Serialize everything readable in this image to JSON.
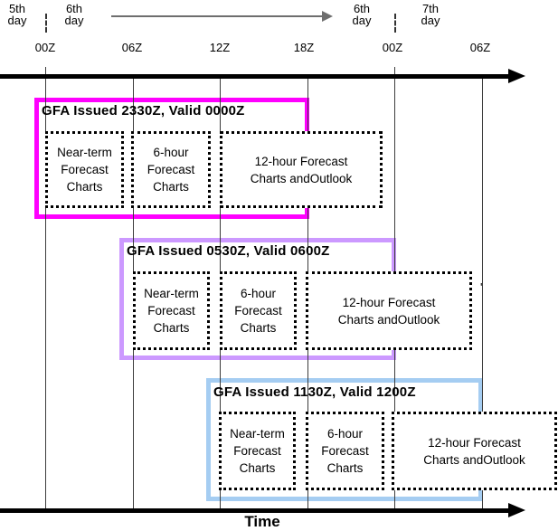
{
  "diagram": {
    "day_headers": [
      {
        "lines": [
          "5th",
          "day"
        ]
      },
      {
        "lines": [
          "6th",
          "day"
        ]
      },
      {
        "lines": [
          "6th",
          "day"
        ]
      },
      {
        "lines": [
          "7th",
          "day"
        ]
      }
    ],
    "axis_ticks": [
      "00Z",
      "06Z",
      "12Z",
      "18Z",
      "00Z",
      "06Z"
    ],
    "time_axis_label": "Time",
    "stray_mark": "'"
  },
  "groups": [
    {
      "title": "GFA Issued 2330Z, Valid 0000Z",
      "border_color": "#FF00FF",
      "boxes": [
        {
          "lines": [
            "Near-term",
            "Forecast",
            "Charts"
          ]
        },
        {
          "lines": [
            "6-hour",
            "Forecast",
            "Charts"
          ]
        },
        {
          "lines": [
            "12-hour Forecast",
            "Charts andOutlook"
          ]
        }
      ]
    },
    {
      "title": "GFA Issued 0530Z, Valid 0600Z",
      "border_color": "#CC99FF",
      "boxes": [
        {
          "lines": [
            "Near-term",
            "Forecast",
            "Charts"
          ]
        },
        {
          "lines": [
            "6-hour",
            "Forecast",
            "Charts"
          ]
        },
        {
          "lines": [
            "12-hour Forecast",
            "Charts andOutlook"
          ]
        }
      ]
    },
    {
      "title": "GFA Issued 1130Z, Valid 1200Z",
      "border_color": "#A5CDF2",
      "boxes": [
        {
          "lines": [
            "Near-term",
            "Forecast",
            "Charts"
          ]
        },
        {
          "lines": [
            "6-hour",
            "Forecast",
            "Charts"
          ]
        },
        {
          "lines": [
            "12-hour Forecast",
            "Charts andOutlook"
          ]
        }
      ]
    }
  ]
}
